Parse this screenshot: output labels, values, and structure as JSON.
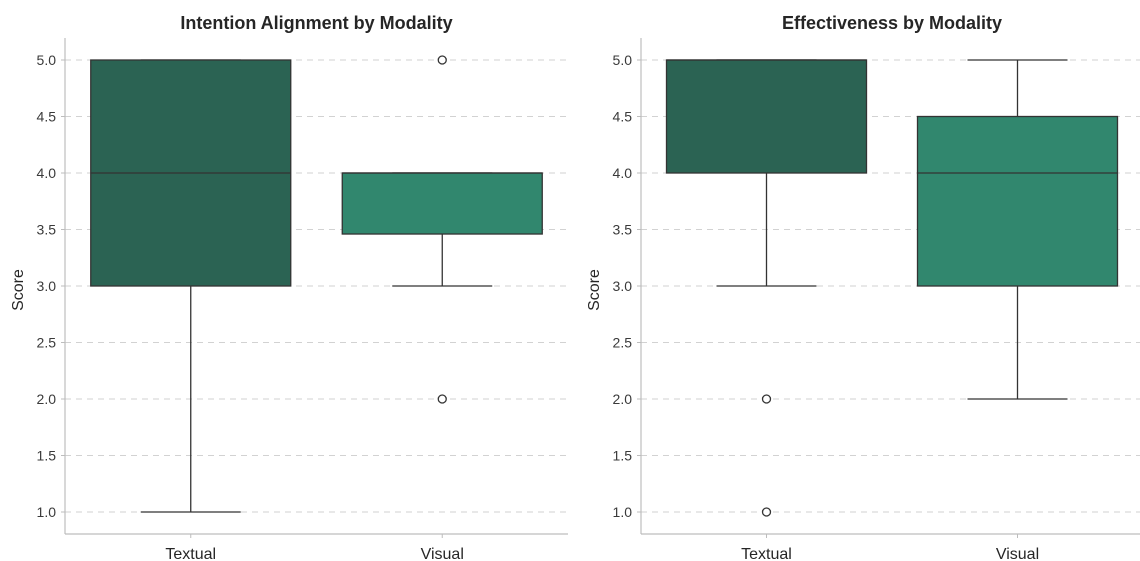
{
  "chart_data": [
    {
      "type": "box",
      "title": "Intention Alignment by Modality",
      "xlabel": "",
      "ylabel": "Score",
      "ylim": [
        0.9,
        5.2
      ],
      "yticks": [
        "1.0",
        "1.5",
        "2.0",
        "2.5",
        "3.0",
        "3.5",
        "4.0",
        "4.5",
        "5.0"
      ],
      "categories": [
        "Textual",
        "Visual"
      ],
      "boxes": [
        {
          "category": "Textual",
          "whisker_low": 1.0,
          "q1": 3.0,
          "median": 4.0,
          "q3": 5.0,
          "whisker_high": 5.0,
          "outliers": [],
          "color": "#2b6353"
        },
        {
          "category": "Visual",
          "whisker_low": 3.0,
          "q1": 3.46,
          "median": 4.0,
          "q3": 4.0,
          "whisker_high": 4.0,
          "outliers": [
            2.0,
            5.0
          ],
          "color": "#31876e"
        }
      ],
      "grid": true
    },
    {
      "type": "box",
      "title": "Effectiveness by Modality",
      "xlabel": "",
      "ylabel": "Score",
      "ylim": [
        0.9,
        5.2
      ],
      "yticks": [
        "1.0",
        "1.5",
        "2.0",
        "2.5",
        "3.0",
        "3.5",
        "4.0",
        "4.5",
        "5.0"
      ],
      "categories": [
        "Textual",
        "Visual"
      ],
      "boxes": [
        {
          "category": "Textual",
          "whisker_low": 3.0,
          "q1": 4.0,
          "median": 5.0,
          "q3": 5.0,
          "whisker_high": 5.0,
          "outliers": [
            1.0,
            2.0
          ],
          "color": "#2b6353"
        },
        {
          "category": "Visual",
          "whisker_low": 2.0,
          "q1": 3.0,
          "median": 4.0,
          "q3": 4.5,
          "whisker_high": 5.0,
          "outliers": [],
          "color": "#31876e"
        }
      ],
      "grid": true
    }
  ]
}
